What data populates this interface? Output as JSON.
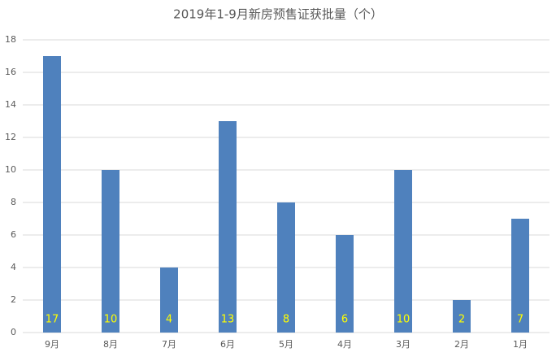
{
  "chart_data": {
    "type": "bar",
    "title": "2019年1-9月新房预售证获批量（个）",
    "categories": [
      "9月",
      "8月",
      "7月",
      "6月",
      "5月",
      "4月",
      "3月",
      "2月",
      "1月"
    ],
    "values": [
      17,
      10,
      4,
      13,
      8,
      6,
      10,
      2,
      7
    ],
    "color": "#4f81bd",
    "label_color": "#ffff00",
    "ylim": [
      0,
      18
    ],
    "yticks": [
      0,
      2,
      4,
      6,
      8,
      10,
      12,
      14,
      16,
      18
    ],
    "grid": true
  }
}
